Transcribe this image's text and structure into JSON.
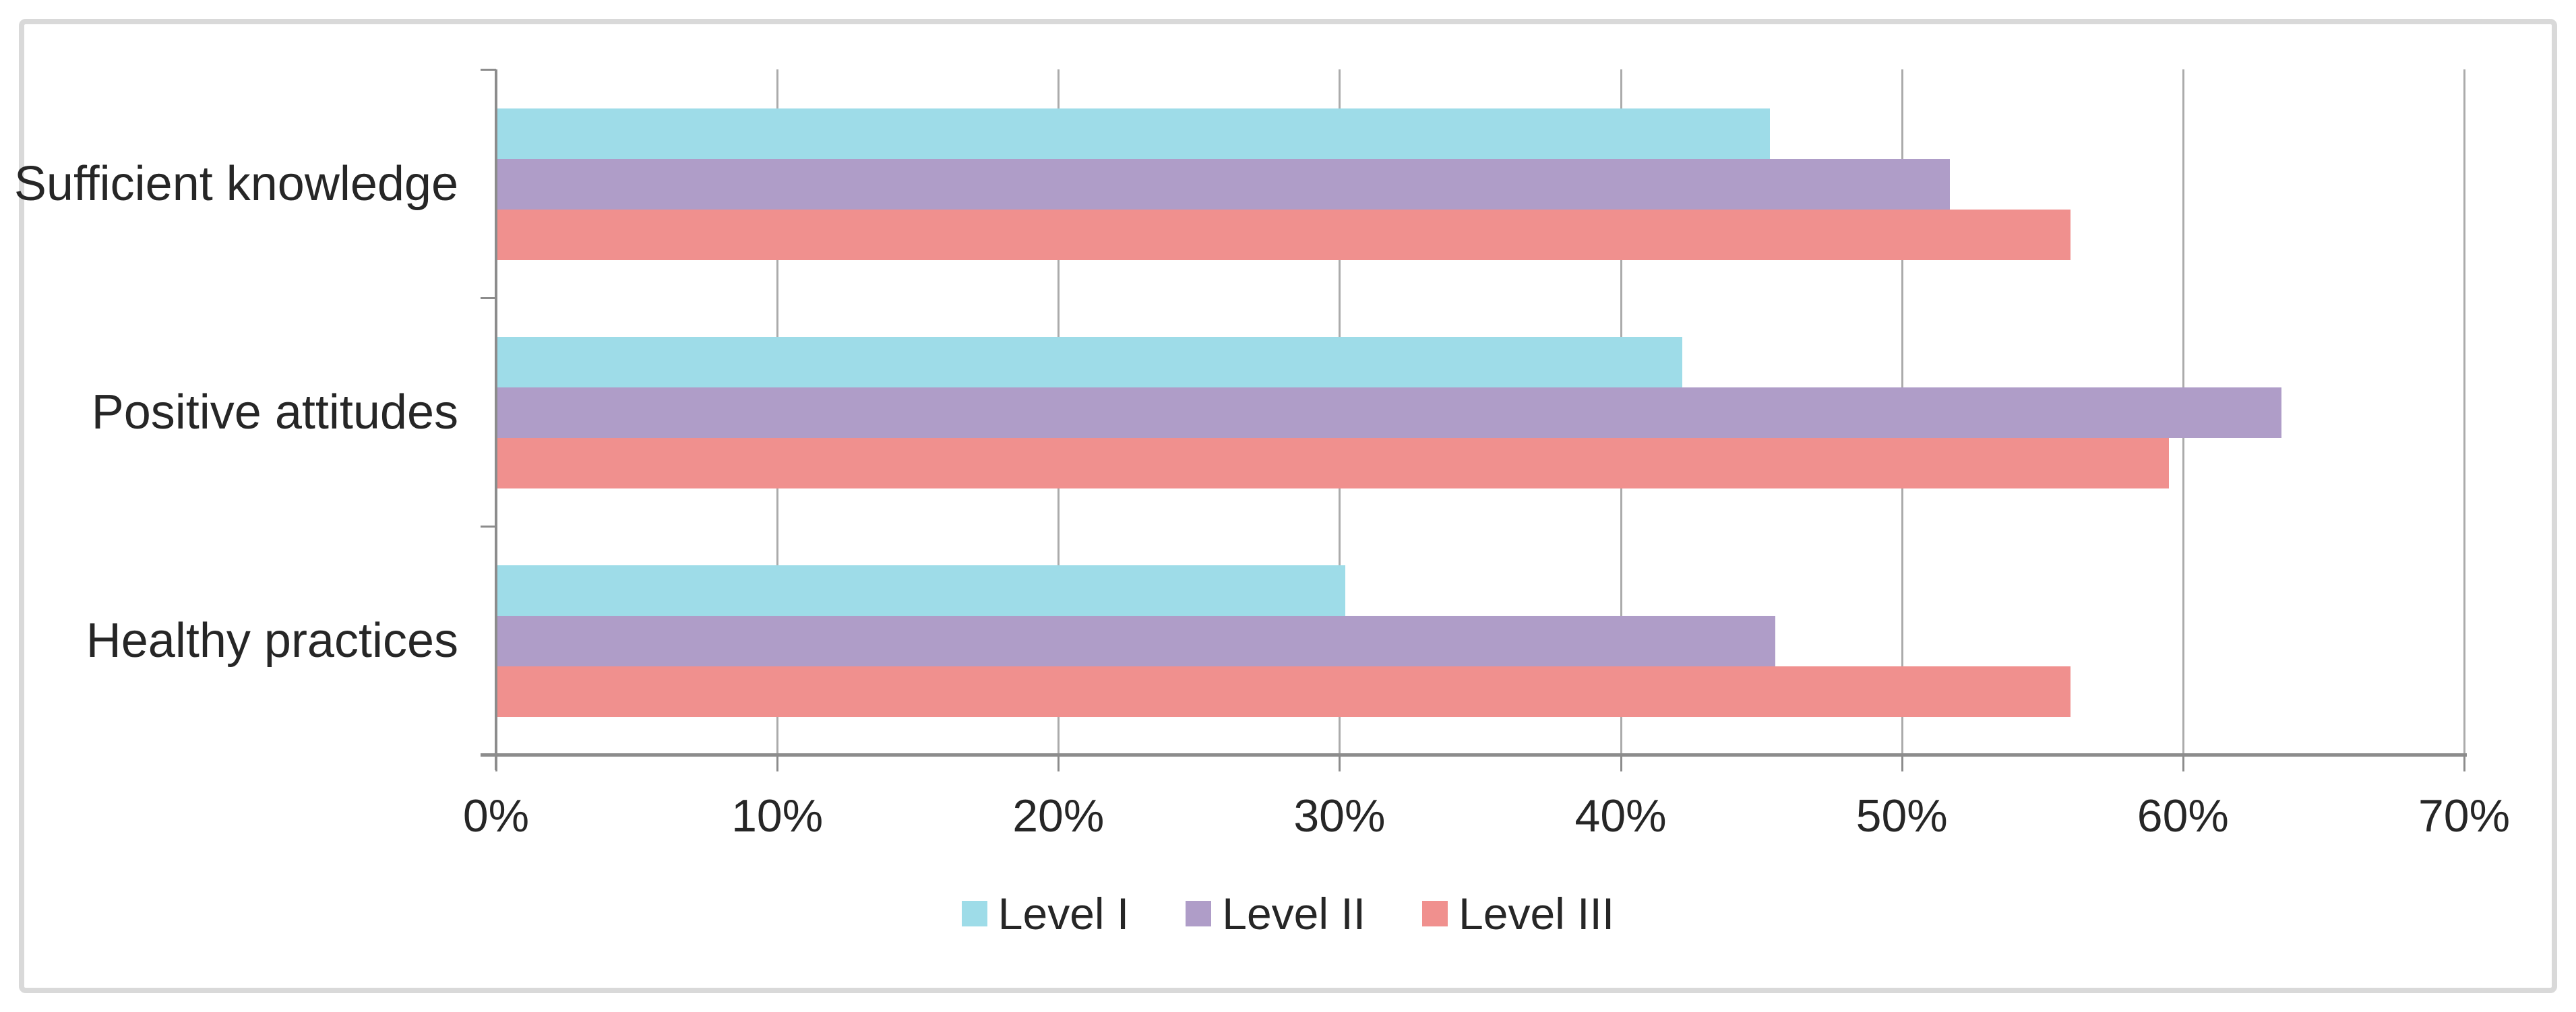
{
  "chart_data": {
    "type": "bar",
    "orientation": "horizontal",
    "title": "",
    "xlabel": "",
    "ylabel": "",
    "categories": [
      "Sufficient knowledge",
      "Positive attitudes",
      "Healthy practices"
    ],
    "series": [
      {
        "name": "Level I",
        "color": "#9edce8",
        "values": [
          45.3,
          42.2,
          30.2
        ]
      },
      {
        "name": "Level II",
        "color": "#af9dc8",
        "values": [
          51.7,
          63.5,
          45.5
        ]
      },
      {
        "name": "Level III",
        "color": "#f0908e",
        "values": [
          56.0,
          59.5,
          56.0
        ]
      }
    ],
    "x_axis": {
      "min": 0,
      "max": 70,
      "step": 10,
      "tick_labels": [
        "0%",
        "10%",
        "20%",
        "30%",
        "40%",
        "50%",
        "60%",
        "70%"
      ],
      "format": "percent"
    },
    "grid": true,
    "legend_position": "bottom"
  },
  "colors": {
    "gridline": "#ababab",
    "axis": "#8c8c8c",
    "frame_border": "#d9d9d9",
    "text": "#262626",
    "background": "#ffffff"
  }
}
